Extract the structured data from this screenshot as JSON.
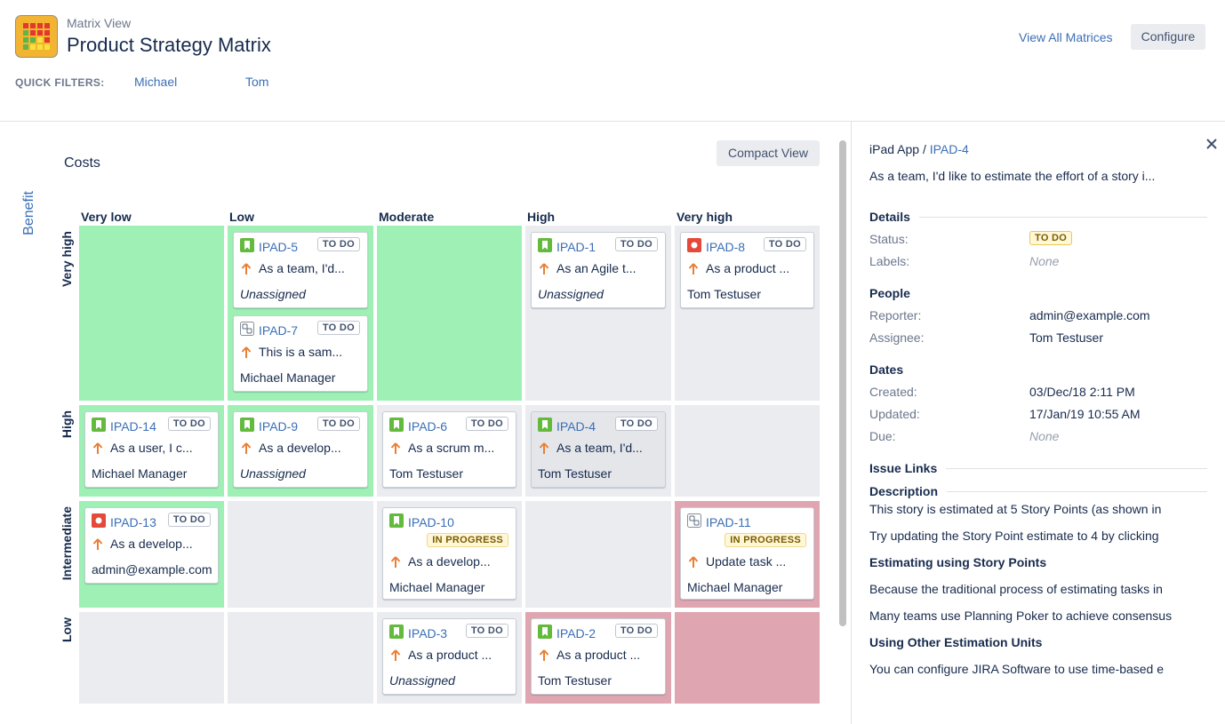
{
  "header": {
    "subtitle": "Matrix View",
    "title": "Product Strategy Matrix",
    "link": "View All Matrices",
    "button": "Configure"
  },
  "quick_filters": {
    "label": "QUICK FILTERS:",
    "filters": [
      "Michael",
      "Tom"
    ]
  },
  "matrix": {
    "x_axis": "Costs",
    "y_axis": "Benefit",
    "button": "Compact View",
    "columns": [
      "Very low",
      "Low",
      "Moderate",
      "High",
      "Very high"
    ],
    "rows": [
      {
        "label": "Very high",
        "cells": [
          {
            "color": "green",
            "cards": []
          },
          {
            "color": "green",
            "cards": [
              {
                "icon": "story",
                "key": "IPAD-5",
                "status": "TO DO",
                "status_style": "default",
                "summary": "As a team, I'd...",
                "assignee": "Unassigned",
                "assignee_italic": true
              },
              {
                "icon": "task",
                "key": "IPAD-7",
                "status": "TO DO",
                "status_style": "default",
                "summary": "This is a sam...",
                "assignee": "Michael Manager"
              }
            ]
          },
          {
            "color": "green",
            "cards": []
          },
          {
            "color": "gray",
            "cards": [
              {
                "icon": "story",
                "key": "IPAD-1",
                "status": "TO DO",
                "status_style": "default",
                "summary": "As an Agile t...",
                "assignee": "Unassigned",
                "assignee_italic": true
              }
            ]
          },
          {
            "color": "gray",
            "cards": [
              {
                "icon": "bug",
                "key": "IPAD-8",
                "status": "TO DO",
                "status_style": "default",
                "summary": "As a product ...",
                "assignee": "Tom Testuser"
              }
            ]
          }
        ]
      },
      {
        "label": "High",
        "cells": [
          {
            "color": "green",
            "cards": [
              {
                "icon": "story",
                "key": "IPAD-14",
                "status": "TO DO",
                "status_style": "default",
                "summary": "As a user, I c...",
                "assignee": "Michael Manager"
              }
            ]
          },
          {
            "color": "green",
            "cards": [
              {
                "icon": "story",
                "key": "IPAD-9",
                "status": "TO DO",
                "status_style": "default",
                "summary": "As a develop...",
                "assignee": "Unassigned",
                "assignee_italic": true
              }
            ]
          },
          {
            "color": "gray",
            "cards": [
              {
                "icon": "story",
                "key": "IPAD-6",
                "status": "TO DO",
                "status_style": "default",
                "summary": "As a scrum m...",
                "assignee": "Tom Testuser"
              }
            ]
          },
          {
            "color": "gray",
            "cards": [
              {
                "icon": "story",
                "key": "IPAD-4",
                "status": "TO DO",
                "status_style": "default",
                "summary": "As a team, I'd...",
                "assignee": "Tom Testuser",
                "selected": true
              }
            ]
          },
          {
            "color": "gray",
            "cards": []
          }
        ]
      },
      {
        "label": "Intermediate",
        "cells": [
          {
            "color": "green",
            "cards": [
              {
                "icon": "bug",
                "key": "IPAD-13",
                "status": "TO DO",
                "status_style": "default",
                "summary": "As a develop...",
                "assignee": "admin@example.com"
              }
            ]
          },
          {
            "color": "gray",
            "cards": []
          },
          {
            "color": "gray",
            "cards": [
              {
                "icon": "story",
                "key": "IPAD-10",
                "status": "IN PROGRESS",
                "status_style": "yellow",
                "summary": "As a develop...",
                "assignee": "Michael Manager"
              }
            ]
          },
          {
            "color": "gray",
            "cards": []
          },
          {
            "color": "pink",
            "cards": [
              {
                "icon": "task",
                "key": "IPAD-11",
                "status": "IN PROGRESS",
                "status_style": "yellow",
                "summary": "Update task ...",
                "assignee": "Michael Manager"
              }
            ]
          }
        ]
      },
      {
        "label": "Low",
        "cells": [
          {
            "color": "gray",
            "cards": []
          },
          {
            "color": "gray",
            "cards": []
          },
          {
            "color": "gray",
            "cards": [
              {
                "icon": "story",
                "key": "IPAD-3",
                "status": "TO DO",
                "status_style": "default",
                "summary": "As a product ...",
                "assignee": "Unassigned",
                "assignee_italic": true
              }
            ]
          },
          {
            "color": "pink",
            "cards": [
              {
                "icon": "story",
                "key": "IPAD-2",
                "status": "TO DO",
                "status_style": "default",
                "summary": "As a product ...",
                "assignee": "Tom Testuser"
              }
            ]
          },
          {
            "color": "pink",
            "cards": []
          }
        ]
      }
    ]
  },
  "panel": {
    "project": "iPad App",
    "separator": "/",
    "key": "IPAD-4",
    "summary": "As a team, I'd like to estimate the effort of a story i...",
    "sections": [
      {
        "heading": "Details",
        "rule": true,
        "fields": [
          {
            "label": "Status:",
            "value": "TO DO",
            "lozenge": true
          },
          {
            "label": "Labels:",
            "value": "None",
            "italic": true
          }
        ]
      },
      {
        "heading": "People",
        "fields": [
          {
            "label": "Reporter:",
            "value": "admin@example.com"
          },
          {
            "label": "Assignee:",
            "value": "Tom Testuser"
          }
        ]
      },
      {
        "heading": "Dates",
        "fields": [
          {
            "label": "Created:",
            "value": "03/Dec/18 2:11 PM"
          },
          {
            "label": "Updated:",
            "value": "17/Jan/19 10:55 AM"
          },
          {
            "label": "Due:",
            "value": "None",
            "italic": true
          }
        ]
      },
      {
        "heading": "Issue Links",
        "rule": true,
        "fields": []
      },
      {
        "heading": "Description",
        "rule": true,
        "fields": []
      }
    ],
    "description": [
      {
        "kind": "p",
        "text": "This story is estimated at 5 Story Points (as shown in"
      },
      {
        "kind": "p",
        "text": "Try updating the Story Point estimate to 4 by clicking"
      },
      {
        "kind": "h",
        "text": "Estimating using Story Points"
      },
      {
        "kind": "p",
        "text": "Because the traditional process of estimating tasks in"
      },
      {
        "kind": "p",
        "text": "Many teams use Planning Poker to achieve consensus"
      },
      {
        "kind": "h",
        "text": "Using Other Estimation Units"
      },
      {
        "kind": "p",
        "text": "You can configure JIRA Software to use time-based e"
      }
    ]
  }
}
